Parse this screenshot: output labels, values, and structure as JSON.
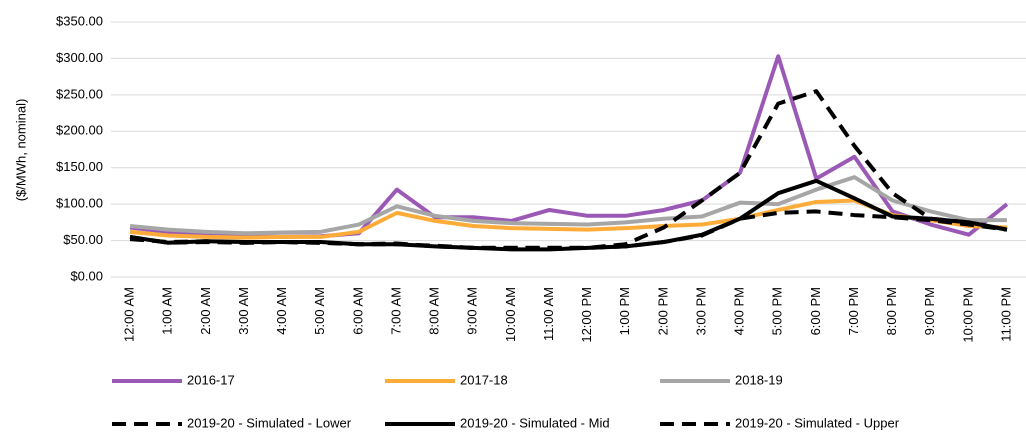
{
  "chart_data": {
    "type": "line",
    "y_label": "($/MWh, nominal)",
    "categories": [
      "12:00 AM",
      "1:00 AM",
      "2:00 AM",
      "3:00 AM",
      "4:00 AM",
      "5:00 AM",
      "6:00 AM",
      "7:00 AM",
      "8:00 AM",
      "9:00 AM",
      "10:00 AM",
      "11:00 AM",
      "12:00 PM",
      "1:00 PM",
      "2:00 PM",
      "3:00 PM",
      "4:00 PM",
      "5:00 PM",
      "6:00 PM",
      "7:00 PM",
      "8:00 PM",
      "9:00 PM",
      "10:00 PM",
      "11:00 PM"
    ],
    "series": [
      {
        "name": "2016-17",
        "color": "#9b59b6",
        "line_style": "solid",
        "values": [
          68,
          62,
          58,
          56,
          55,
          56,
          60,
          120,
          82,
          82,
          77,
          92,
          84,
          84,
          92,
          105,
          143,
          303,
          135,
          165,
          90,
          72,
          58,
          100
        ]
      },
      {
        "name": "2017-18",
        "color": "#fdac3a",
        "line_style": "solid",
        "values": [
          62,
          57,
          55,
          54,
          55,
          55,
          62,
          88,
          77,
          70,
          67,
          66,
          65,
          67,
          70,
          72,
          80,
          92,
          103,
          105,
          85,
          78,
          70,
          68
        ]
      },
      {
        "name": "2018-19",
        "color": "#a6a6a6",
        "line_style": "solid",
        "values": [
          70,
          65,
          62,
          60,
          61,
          62,
          72,
          97,
          84,
          77,
          74,
          73,
          72,
          75,
          80,
          83,
          102,
          100,
          120,
          137,
          105,
          90,
          78,
          78
        ]
      },
      {
        "name": "2019-20 - Simulated - Lower",
        "color": "#000000",
        "line_style": "dashed",
        "values": [
          55,
          47,
          48,
          47,
          48,
          47,
          45,
          46,
          42,
          40,
          40,
          40,
          40,
          42,
          48,
          57,
          80,
          88,
          90,
          85,
          82,
          78,
          72,
          65
        ]
      },
      {
        "name": "2019-20 - Simulated - Mid",
        "color": "#000000",
        "line_style": "solid",
        "values": [
          55,
          47,
          49,
          48,
          48,
          48,
          45,
          45,
          42,
          40,
          38,
          38,
          40,
          42,
          48,
          58,
          80,
          115,
          132,
          108,
          83,
          80,
          75,
          65
        ]
      },
      {
        "name": "2019-20 - Simulated - Upper",
        "color": "#000000",
        "line_style": "dashed",
        "values": [
          52,
          48,
          49,
          47,
          48,
          47,
          45,
          45,
          43,
          40,
          40,
          40,
          40,
          45,
          68,
          105,
          143,
          238,
          255,
          180,
          115,
          80,
          75,
          65
        ]
      }
    ],
    "ylim": [
      0,
      350
    ],
    "yticks": [
      {
        "value": 0,
        "label": "$0.00"
      },
      {
        "value": 50,
        "label": "$50.00"
      },
      {
        "value": 100,
        "label": "$100.00"
      },
      {
        "value": 150,
        "label": "$150.00"
      },
      {
        "value": 200,
        "label": "$200.00"
      },
      {
        "value": 250,
        "label": "$250.00"
      },
      {
        "value": 300,
        "label": "$300.00"
      },
      {
        "value": 350,
        "label": "$350.00"
      }
    ],
    "grid": true
  }
}
